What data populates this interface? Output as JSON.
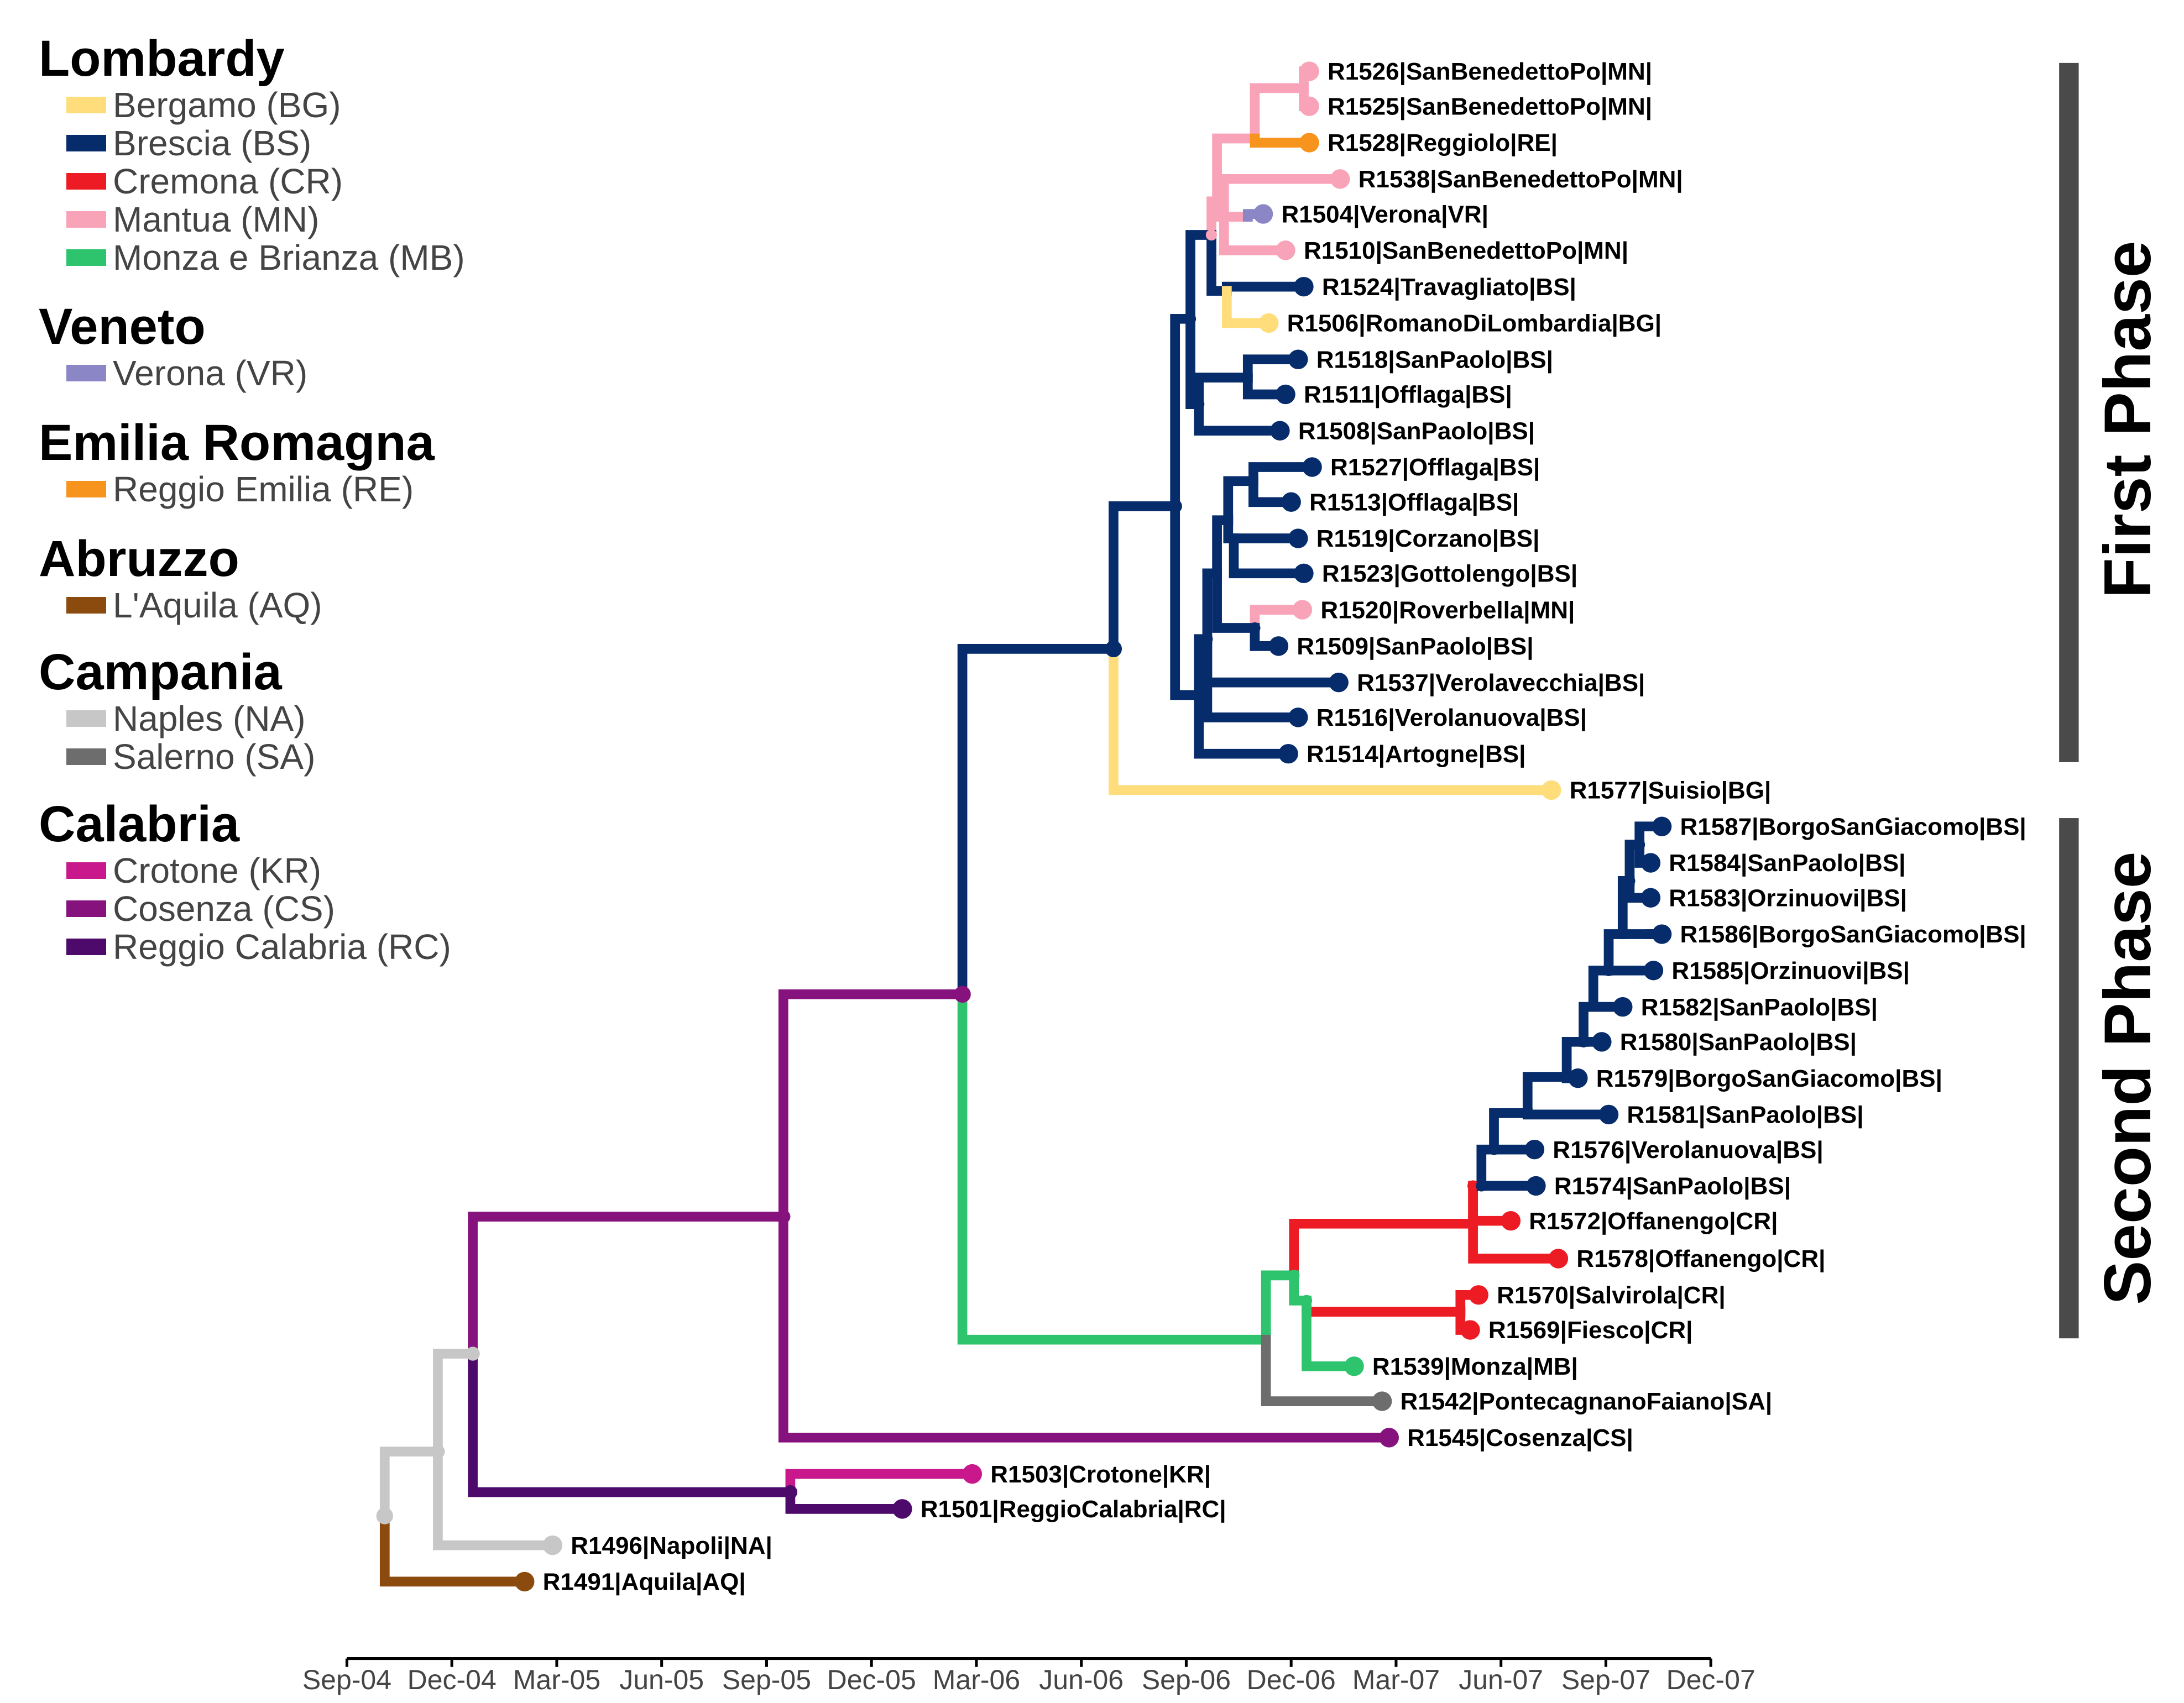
{
  "colors": {
    "BG": "#ffdd7a",
    "BS": "#062c6b",
    "CR": "#ed1c24",
    "MN": "#f9a3b9",
    "MB": "#2ec46e",
    "VR": "#8b87c6",
    "RE": "#f7941d",
    "AQ": "#8b4a0e",
    "NA": "#c7c7c7",
    "SA": "#6d6d6d",
    "KR": "#c9188c",
    "CS": "#86127e",
    "RC": "#4d0a6b",
    "phase_bar": "#4a4a4a"
  },
  "legend": [
    {
      "region": "Lombardy",
      "items": [
        {
          "code": "BG",
          "label": "Bergamo (BG)"
        },
        {
          "code": "BS",
          "label": "Brescia (BS)"
        },
        {
          "code": "CR",
          "label": "Cremona (CR)"
        },
        {
          "code": "MN",
          "label": "Mantua (MN)"
        },
        {
          "code": "MB",
          "label": "Monza e Brianza (MB)"
        }
      ]
    },
    {
      "region": "Veneto",
      "items": [
        {
          "code": "VR",
          "label": "Verona (VR)"
        }
      ]
    },
    {
      "region": "Emilia Romagna",
      "items": [
        {
          "code": "RE",
          "label": "Reggio Emilia (RE)"
        }
      ]
    },
    {
      "region": "Abruzzo",
      "items": [
        {
          "code": "AQ",
          "label": "L'Aquila (AQ)"
        }
      ]
    },
    {
      "region": "Campania",
      "items": [
        {
          "code": "NA",
          "label": "Naples (NA)"
        },
        {
          "code": "SA",
          "label": "Salerno (SA)"
        }
      ]
    },
    {
      "region": "Calabria",
      "items": [
        {
          "code": "KR",
          "label": "Crotone (KR)"
        },
        {
          "code": "CS",
          "label": "Cosenza (CS)"
        },
        {
          "code": "RC",
          "label": "Reggio Calabria (RC)"
        }
      ]
    }
  ],
  "axis": {
    "ticks": [
      "Sep-04",
      "Dec-04",
      "Mar-05",
      "Jun-05",
      "Sep-05",
      "Dec-05",
      "Mar-06",
      "Jun-06",
      "Sep-06",
      "Dec-06",
      "Mar-07",
      "Jun-07",
      "Sep-07",
      "Dec-07"
    ]
  },
  "tips": [
    "R1526|SanBenedettoPo|MN|",
    "R1525|SanBenedettoPo|MN|",
    "R1528|Reggiolo|RE|",
    "R1538|SanBenedettoPo|MN|",
    "R1504|Verona|VR|",
    "R1510|SanBenedettoPo|MN|",
    "R1524|Travagliato|BS|",
    "R1506|RomanoDiLombardia|BG|",
    "R1518|SanPaolo|BS|",
    "R1511|Offlaga|BS|",
    "R1508|SanPaolo|BS|",
    "R1527|Offlaga|BS|",
    "R1513|Offlaga|BS|",
    "R1519|Corzano|BS|",
    "R1523|Gottolengo|BS|",
    "R1520|Roverbella|MN|",
    "R1509|SanPaolo|BS|",
    "R1537|Verolavecchia|BS|",
    "R1516|Verolanuova|BS|",
    "R1514|Artogne|BS|",
    "R1577|Suisio|BG|",
    "R1587|BorgoSanGiacomo|BS|",
    "R1584|SanPaolo|BS|",
    "R1583|Orzinuovi|BS|",
    "R1586|BorgoSanGiacomo|BS|",
    "R1585|Orzinuovi|BS|",
    "R1582|SanPaolo|BS|",
    "R1580|SanPaolo|BS|",
    "R1579|BorgoSanGiacomo|BS|",
    "R1581|SanPaolo|BS|",
    "R1576|Verolanuova|BS|",
    "R1574|SanPaolo|BS|",
    "R1572|Offanengo|CR|",
    "R1578|Offanengo|CR|",
    "R1570|Salvirola|CR|",
    "R1569|Fiesco|CR|",
    "R1539|Monza|MB|",
    "R1542|PontecagnanoFaiano|SA|",
    "R1545|Cosenza|CS|",
    "R1503|Crotone|KR|",
    "R1501|ReggioCalabria|RC|",
    "R1496|Napoli|NA|",
    "R1491|Aquila|AQ|"
  ],
  "phases": [
    {
      "label": "First Phase"
    },
    {
      "label": "Second Phase"
    }
  ]
}
